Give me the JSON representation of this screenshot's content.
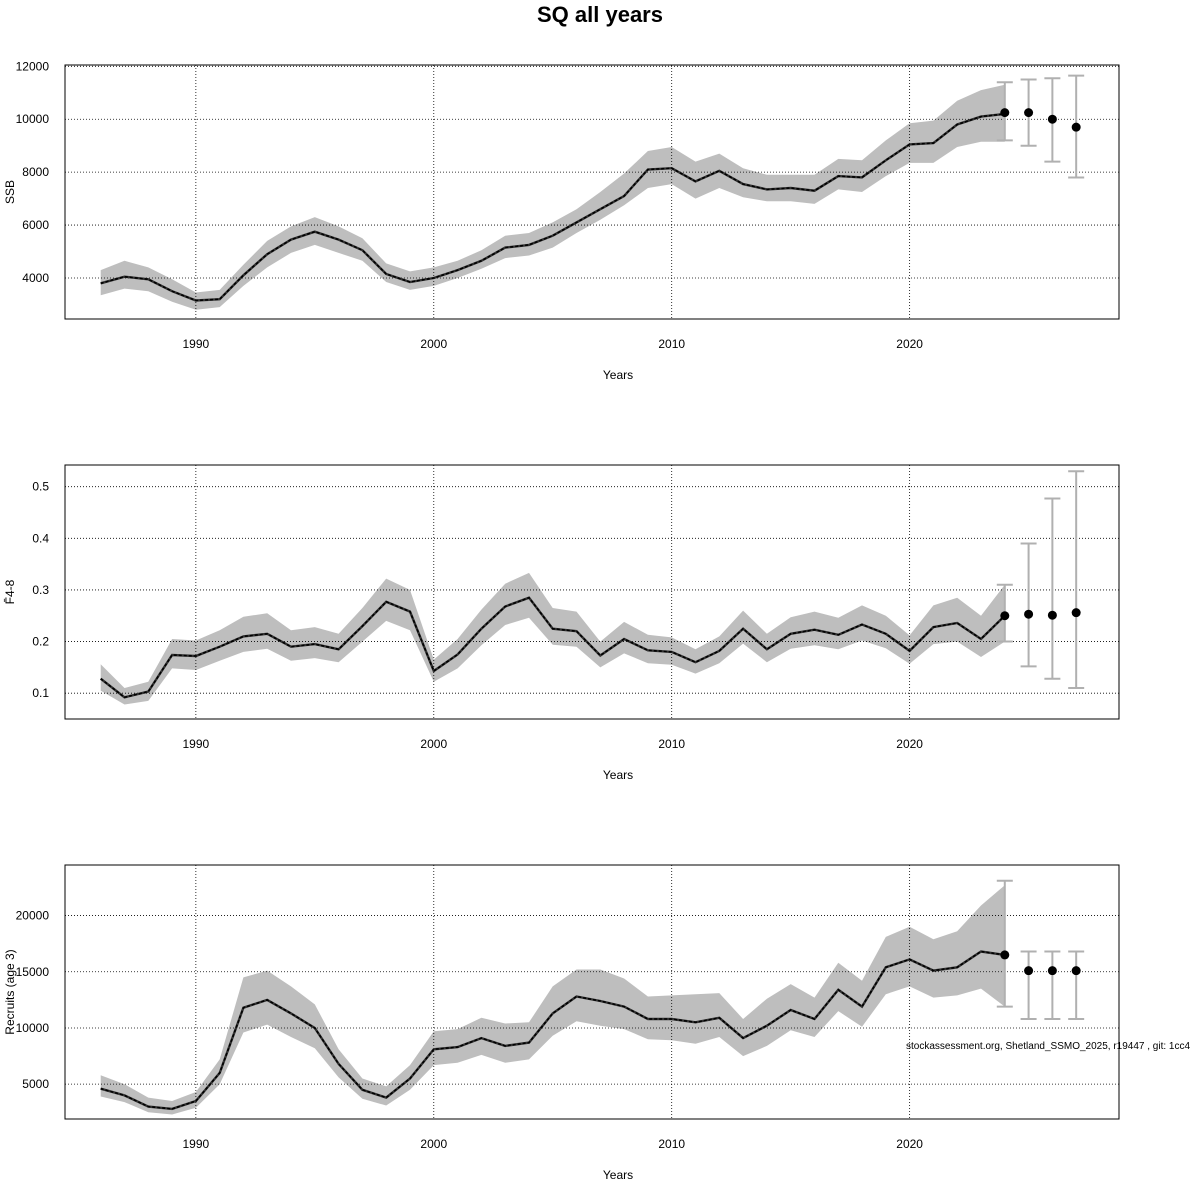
{
  "title": "SQ all years",
  "footnote": "stockassessment.org, Shetland_SSMO_2025, r19447 , git: 1cc4",
  "colors": {
    "band": "#bebebe",
    "line": "#000000",
    "whisker": "#b0b0b0",
    "grid": "#000000"
  },
  "chart_data": [
    {
      "type": "line",
      "ylabel": "SSB",
      "xlabel": "Years",
      "xlim": [
        1984.5,
        2028.8
      ],
      "ylim": [
        2450,
        12050
      ],
      "xticks": [
        1990,
        2000,
        2010,
        2020
      ],
      "yticks": [
        4000,
        6000,
        8000,
        10000,
        12000
      ],
      "grid": true,
      "x": [
        1986,
        1987,
        1988,
        1989,
        1990,
        1991,
        1992,
        1993,
        1994,
        1995,
        1996,
        1997,
        1998,
        1999,
        2000,
        2001,
        2002,
        2003,
        2004,
        2005,
        2006,
        2007,
        2008,
        2009,
        2010,
        2011,
        2012,
        2013,
        2014,
        2015,
        2016,
        2017,
        2018,
        2019,
        2020,
        2021,
        2022,
        2023,
        2024
      ],
      "estimate": [
        3800,
        4050,
        3950,
        3500,
        3150,
        3200,
        4100,
        4900,
        5450,
        5750,
        5450,
        5050,
        4150,
        3850,
        4000,
        4300,
        4650,
        5150,
        5250,
        5600,
        6100,
        6600,
        7100,
        8100,
        8150,
        7650,
        8050,
        7550,
        7350,
        7400,
        7300,
        7850,
        7800,
        8450,
        9050,
        9100,
        9800,
        10100,
        10200
      ],
      "lower": [
        3350,
        3600,
        3500,
        3100,
        2800,
        2900,
        3700,
        4400,
        4950,
        5250,
        4950,
        4650,
        3850,
        3550,
        3700,
        4000,
        4350,
        4750,
        4850,
        5150,
        5700,
        6200,
        6750,
        7400,
        7550,
        7000,
        7400,
        7050,
        6900,
        6900,
        6800,
        7350,
        7250,
        7850,
        8350,
        8350,
        8950,
        9150,
        9150
      ],
      "upper": [
        4300,
        4650,
        4400,
        3950,
        3450,
        3550,
        4500,
        5400,
        5950,
        6300,
        5950,
        5500,
        4550,
        4250,
        4400,
        4650,
        5050,
        5600,
        5700,
        6100,
        6600,
        7250,
        7950,
        8800,
        8950,
        8400,
        8700,
        8150,
        7900,
        7900,
        7900,
        8500,
        8450,
        9200,
        9850,
        9950,
        10700,
        11100,
        11300
      ],
      "forecast": {
        "x": [
          2024,
          2025,
          2026,
          2027
        ],
        "median": [
          10250,
          10250,
          10000,
          9700
        ],
        "low": [
          9200,
          9000,
          8400,
          7800
        ],
        "high": [
          11400,
          11500,
          11550,
          11650
        ]
      }
    },
    {
      "type": "line",
      "ylabel": "F̄4-8",
      "xlabel": "Years",
      "xlim": [
        1984.5,
        2028.8
      ],
      "ylim": [
        0.05,
        0.542
      ],
      "xticks": [
        1990,
        2000,
        2010,
        2020
      ],
      "yticks": [
        0.1,
        0.2,
        0.3,
        0.4,
        0.5
      ],
      "grid": true,
      "x": [
        1986,
        1987,
        1988,
        1989,
        1990,
        1991,
        1992,
        1993,
        1994,
        1995,
        1996,
        1997,
        1998,
        1999,
        2000,
        2001,
        2002,
        2003,
        2004,
        2005,
        2006,
        2007,
        2008,
        2009,
        2010,
        2011,
        2012,
        2013,
        2014,
        2015,
        2016,
        2017,
        2018,
        2019,
        2020,
        2021,
        2022,
        2023,
        2024
      ],
      "estimate": [
        0.128,
        0.092,
        0.103,
        0.174,
        0.172,
        0.19,
        0.21,
        0.215,
        0.19,
        0.195,
        0.185,
        0.23,
        0.277,
        0.258,
        0.143,
        0.175,
        0.225,
        0.268,
        0.285,
        0.225,
        0.22,
        0.173,
        0.205,
        0.183,
        0.18,
        0.16,
        0.182,
        0.225,
        0.185,
        0.215,
        0.223,
        0.213,
        0.233,
        0.215,
        0.182,
        0.228,
        0.236,
        0.205,
        0.25
      ],
      "lower": [
        0.105,
        0.078,
        0.085,
        0.148,
        0.145,
        0.163,
        0.18,
        0.186,
        0.163,
        0.168,
        0.16,
        0.2,
        0.24,
        0.222,
        0.122,
        0.148,
        0.193,
        0.232,
        0.246,
        0.194,
        0.19,
        0.15,
        0.177,
        0.158,
        0.155,
        0.138,
        0.158,
        0.196,
        0.16,
        0.186,
        0.193,
        0.185,
        0.202,
        0.187,
        0.157,
        0.195,
        0.2,
        0.17,
        0.2
      ],
      "upper": [
        0.156,
        0.11,
        0.122,
        0.205,
        0.202,
        0.222,
        0.248,
        0.255,
        0.222,
        0.228,
        0.215,
        0.265,
        0.322,
        0.3,
        0.165,
        0.205,
        0.262,
        0.312,
        0.333,
        0.265,
        0.258,
        0.2,
        0.238,
        0.213,
        0.208,
        0.185,
        0.21,
        0.26,
        0.215,
        0.247,
        0.258,
        0.246,
        0.27,
        0.25,
        0.212,
        0.27,
        0.285,
        0.25,
        0.31
      ],
      "forecast": {
        "x": [
          2024,
          2025,
          2026,
          2027
        ],
        "median": [
          0.25,
          0.253,
          0.251,
          0.256
        ],
        "low": [
          0.2,
          0.152,
          0.128,
          0.11
        ],
        "high": [
          0.31,
          0.39,
          0.477,
          0.53
        ]
      }
    },
    {
      "type": "line",
      "ylabel": "Recruits (age 3)",
      "xlabel": "Years",
      "xlim": [
        1984.5,
        2028.8
      ],
      "ylim": [
        1900,
        24500
      ],
      "xticks": [
        1990,
        2000,
        2010,
        2020
      ],
      "yticks": [
        5000,
        10000,
        15000,
        20000
      ],
      "grid": true,
      "x": [
        1986,
        1987,
        1988,
        1989,
        1990,
        1991,
        1992,
        1993,
        1994,
        1995,
        1996,
        1997,
        1998,
        1999,
        2000,
        2001,
        2002,
        2003,
        2004,
        2005,
        2006,
        2007,
        2008,
        2009,
        2010,
        2011,
        2012,
        2013,
        2014,
        2015,
        2016,
        2017,
        2018,
        2019,
        2020,
        2021,
        2022,
        2023,
        2024
      ],
      "estimate": [
        4600,
        4000,
        3000,
        2800,
        3500,
        6000,
        11800,
        12500,
        11300,
        10000,
        6800,
        4500,
        3800,
        5500,
        8100,
        8300,
        9100,
        8400,
        8700,
        11300,
        12800,
        12400,
        11900,
        10800,
        10800,
        10500,
        10900,
        9100,
        10200,
        11600,
        10800,
        13400,
        11900,
        15400,
        16100,
        15100,
        15400,
        16800,
        16500
      ],
      "lower": [
        3900,
        3400,
        2500,
        2300,
        2900,
        5000,
        9600,
        10300,
        9200,
        8200,
        5600,
        3700,
        3100,
        4500,
        6700,
        6900,
        7600,
        6900,
        7200,
        9300,
        10600,
        10200,
        9900,
        9000,
        8900,
        8600,
        9200,
        7500,
        8400,
        9800,
        9200,
        11500,
        10100,
        13000,
        13700,
        12700,
        12900,
        13500,
        11900
      ],
      "upper": [
        5800,
        5000,
        3800,
        3500,
        4300,
        7200,
        14500,
        15100,
        13700,
        12100,
        8100,
        5500,
        4800,
        6700,
        9700,
        9900,
        10900,
        10400,
        10500,
        13700,
        15200,
        15200,
        14400,
        12800,
        12900,
        13000,
        13100,
        10800,
        12600,
        13900,
        12700,
        15800,
        14200,
        18100,
        19000,
        17900,
        18600,
        20900,
        22700
      ],
      "forecast": {
        "x": [
          2024,
          2025,
          2026,
          2027
        ],
        "median": [
          16500,
          15100,
          15100,
          15100
        ],
        "low": [
          11900,
          10800,
          10800,
          10800
        ],
        "high": [
          23100,
          16800,
          16800,
          16800
        ]
      }
    }
  ]
}
